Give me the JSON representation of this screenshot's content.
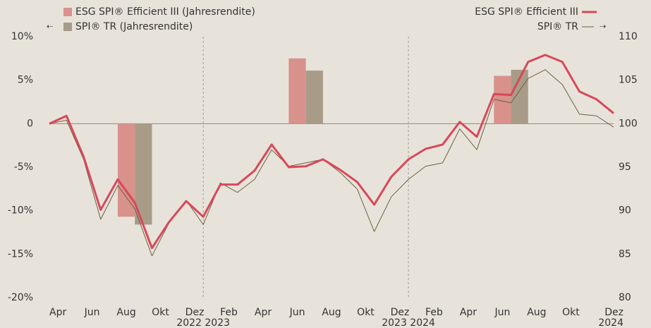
{
  "chart_data": {
    "type": "line",
    "categories": [
      null,
      "Apr",
      null,
      "Jun",
      null,
      "Aug",
      null,
      "Okt",
      null,
      "Dez",
      null,
      "Feb",
      null,
      "Apr",
      null,
      "Jun",
      null,
      "Aug",
      null,
      "Okt",
      null,
      "Dez",
      null,
      "Feb",
      null,
      "Apr",
      null,
      "Jun",
      null,
      "Aug",
      null,
      "Okt",
      null,
      "Dez"
    ],
    "year_labels": [
      "2022 2023",
      "2023 2024",
      "2024"
    ],
    "series": [
      {
        "name": "ESG SPI® Efficient III",
        "color": "#d9475a",
        "axis": "y2",
        "values": [
          100,
          100.9,
          96.2,
          90.1,
          93.6,
          90.9,
          85.7,
          88.7,
          91.1,
          89.3,
          93.0,
          93.0,
          94.6,
          97.6,
          95.0,
          95.1,
          95.9,
          94.7,
          93.3,
          90.7,
          93.9,
          95.9,
          97.1,
          97.6,
          100.2,
          98.5,
          103.4,
          103.3,
          107.1,
          107.9,
          107.1,
          103.7,
          102.8,
          101.2
        ]
      },
      {
        "name": "SPI® TR",
        "color": "#6b6040",
        "axis": "y2",
        "values": [
          100,
          100.4,
          95.9,
          89.0,
          92.9,
          90.2,
          84.8,
          88.6,
          91.2,
          88.4,
          93.2,
          92.1,
          93.6,
          97.0,
          95.1,
          95.5,
          95.9,
          94.4,
          92.5,
          87.6,
          91.6,
          93.6,
          95.1,
          95.5,
          99.4,
          97.0,
          102.8,
          102.4,
          105.2,
          106.2,
          104.5,
          101.1,
          100.9,
          99.6
        ]
      }
    ],
    "bar_series": [
      {
        "name": "ESG SPI® Efficient III (Jahresrendite)",
        "color": "#d9918c",
        "values": [
          -10.7,
          7.5,
          5.5
        ]
      },
      {
        "name": "SPI® TR (Jahresrendite)",
        "color": "#a89c88",
        "values": [
          -11.6,
          6.1,
          6.2
        ]
      }
    ],
    "ylim": [
      -20,
      10
    ],
    "yticks": [
      {
        "value": 10,
        "label": "10%"
      },
      {
        "value": 5,
        "label": "5%"
      },
      0,
      {
        "value": -5,
        "label": "-5%"
      },
      {
        "value": -10,
        "label": "-10%"
      },
      {
        "value": -15,
        "label": "-15%"
      },
      {
        "value": -20,
        "label": "-20%"
      }
    ],
    "y2lim": [
      80,
      110
    ],
    "y2ticks": [
      110,
      105,
      100,
      95,
      90,
      85,
      80
    ]
  }
}
